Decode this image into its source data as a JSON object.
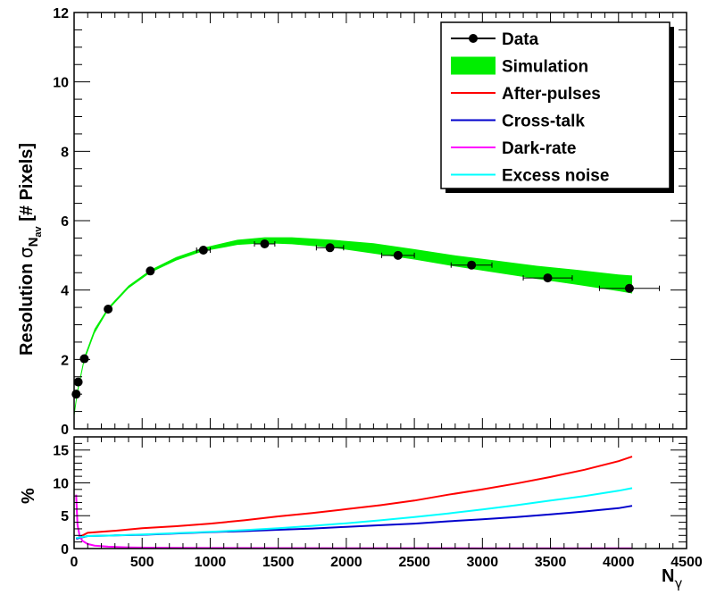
{
  "chart_data": [
    {
      "type": "scatter",
      "panel": "main",
      "xlabel": "",
      "ylabel": {
        "text": "Resolution ",
        "symbol": "σ",
        "subscript": "N",
        "subsubscript": "av",
        "units": " [# Pixels]"
      },
      "xlim": [
        0,
        4500
      ],
      "ylim": [
        0,
        12
      ],
      "yticks": [
        0,
        2,
        4,
        6,
        8,
        10,
        12
      ],
      "xticks": [
        0,
        500,
        1000,
        1500,
        2000,
        2500,
        3000,
        3500,
        4000,
        4500
      ],
      "legend_position": "top-right",
      "legend": [
        {
          "label": "Data",
          "style": "marker",
          "color": "#000000"
        },
        {
          "label": "Simulation",
          "style": "band",
          "color": "#00ee00"
        },
        {
          "label": "After-pulses",
          "style": "line",
          "color": "#ff0000"
        },
        {
          "label": "Cross-talk",
          "style": "line",
          "color": "#0000cc"
        },
        {
          "label": "Dark-rate",
          "style": "line",
          "color": "#ff00ff"
        },
        {
          "label": "Excess noise",
          "style": "line",
          "color": "#00ffff"
        }
      ],
      "series": [
        {
          "name": "Data",
          "color": "#000000",
          "points": [
            {
              "x": 15,
              "y": 1.0,
              "xerr": 12
            },
            {
              "x": 30,
              "y": 1.35,
              "xerr": 15
            },
            {
              "x": 75,
              "y": 2.02,
              "xerr": 15
            },
            {
              "x": 250,
              "y": 3.45,
              "xerr": 15
            },
            {
              "x": 560,
              "y": 4.55,
              "xerr": 20
            },
            {
              "x": 950,
              "y": 5.15,
              "xerr": 50
            },
            {
              "x": 1400,
              "y": 5.33,
              "xerr": 75
            },
            {
              "x": 1880,
              "y": 5.22,
              "xerr": 100
            },
            {
              "x": 2380,
              "y": 5.0,
              "xerr": 120
            },
            {
              "x": 2920,
              "y": 4.72,
              "xerr": 150
            },
            {
              "x": 3480,
              "y": 4.35,
              "xerr": 180
            },
            {
              "x": 4080,
              "y": 4.05,
              "xerr": 220
            }
          ]
        },
        {
          "name": "Simulation",
          "color": "#00ee00",
          "band": [
            {
              "x": 0,
              "low": 0.3,
              "high": 0.5
            },
            {
              "x": 25,
              "low": 1.0,
              "high": 1.15
            },
            {
              "x": 75,
              "low": 1.95,
              "high": 2.08
            },
            {
              "x": 150,
              "low": 2.75,
              "high": 2.88
            },
            {
              "x": 250,
              "low": 3.42,
              "high": 3.5
            },
            {
              "x": 400,
              "low": 4.05,
              "high": 4.13
            },
            {
              "x": 560,
              "low": 4.5,
              "high": 4.58
            },
            {
              "x": 750,
              "low": 4.85,
              "high": 4.95
            },
            {
              "x": 950,
              "low": 5.12,
              "high": 5.22
            },
            {
              "x": 1200,
              "low": 5.3,
              "high": 5.45
            },
            {
              "x": 1400,
              "low": 5.35,
              "high": 5.52
            },
            {
              "x": 1600,
              "low": 5.32,
              "high": 5.52
            },
            {
              "x": 1900,
              "low": 5.22,
              "high": 5.45
            },
            {
              "x": 2200,
              "low": 5.05,
              "high": 5.35
            },
            {
              "x": 2500,
              "low": 4.88,
              "high": 5.18
            },
            {
              "x": 2800,
              "low": 4.68,
              "high": 5.0
            },
            {
              "x": 3100,
              "low": 4.5,
              "high": 4.85
            },
            {
              "x": 3400,
              "low": 4.32,
              "high": 4.7
            },
            {
              "x": 3700,
              "low": 4.15,
              "high": 4.58
            },
            {
              "x": 4000,
              "low": 3.97,
              "high": 4.45
            },
            {
              "x": 4100,
              "low": 3.9,
              "high": 4.42
            }
          ]
        }
      ]
    },
    {
      "type": "line",
      "panel": "ratio",
      "ylabel": "%",
      "xlabel": {
        "text": "N",
        "subscript": "γ"
      },
      "xlim": [
        0,
        4500
      ],
      "ylim": [
        0,
        17
      ],
      "yticks": [
        0,
        5,
        10,
        15
      ],
      "xticks": [
        0,
        500,
        1000,
        1500,
        2000,
        2500,
        3000,
        3500,
        4000,
        4500
      ],
      "series": [
        {
          "name": "After-pulses",
          "color": "#ff0000",
          "x": [
            15,
            100,
            300,
            500,
            750,
            1000,
            1250,
            1500,
            1750,
            2000,
            2250,
            2500,
            2750,
            3000,
            3250,
            3500,
            3750,
            4000,
            4100
          ],
          "y": [
            1.5,
            2.4,
            2.7,
            3.1,
            3.4,
            3.8,
            4.3,
            4.9,
            5.4,
            6.0,
            6.6,
            7.3,
            8.2,
            9.0,
            9.9,
            10.9,
            12.0,
            13.3,
            14.0
          ]
        },
        {
          "name": "Cross-talk",
          "color": "#0000cc",
          "x": [
            15,
            100,
            300,
            500,
            750,
            1000,
            1250,
            1500,
            1750,
            2000,
            2250,
            2500,
            2750,
            3000,
            3250,
            3500,
            3750,
            4000,
            4100
          ],
          "y": [
            1.5,
            1.9,
            2.0,
            2.1,
            2.3,
            2.5,
            2.65,
            2.85,
            3.05,
            3.3,
            3.55,
            3.8,
            4.15,
            4.45,
            4.8,
            5.2,
            5.65,
            6.15,
            6.5
          ]
        },
        {
          "name": "Dark-rate",
          "color": "#ff00ff",
          "x": [
            15,
            25,
            40,
            60,
            100,
            150,
            250,
            400,
            600,
            1000,
            2000,
            3000,
            4100
          ],
          "y": [
            8.2,
            3.6,
            2.0,
            1.2,
            0.7,
            0.45,
            0.28,
            0.18,
            0.12,
            0.08,
            0.05,
            0.04,
            0.03
          ]
        },
        {
          "name": "Excess noise",
          "color": "#00ffff",
          "x": [
            15,
            100,
            300,
            500,
            750,
            1000,
            1250,
            1500,
            1750,
            2000,
            2250,
            2500,
            2750,
            3000,
            3250,
            3500,
            3750,
            4000,
            4100
          ],
          "y": [
            1.6,
            1.9,
            2.0,
            2.15,
            2.35,
            2.55,
            2.8,
            3.1,
            3.45,
            3.85,
            4.3,
            4.8,
            5.35,
            5.95,
            6.6,
            7.3,
            8.0,
            8.8,
            9.2
          ]
        }
      ]
    }
  ]
}
